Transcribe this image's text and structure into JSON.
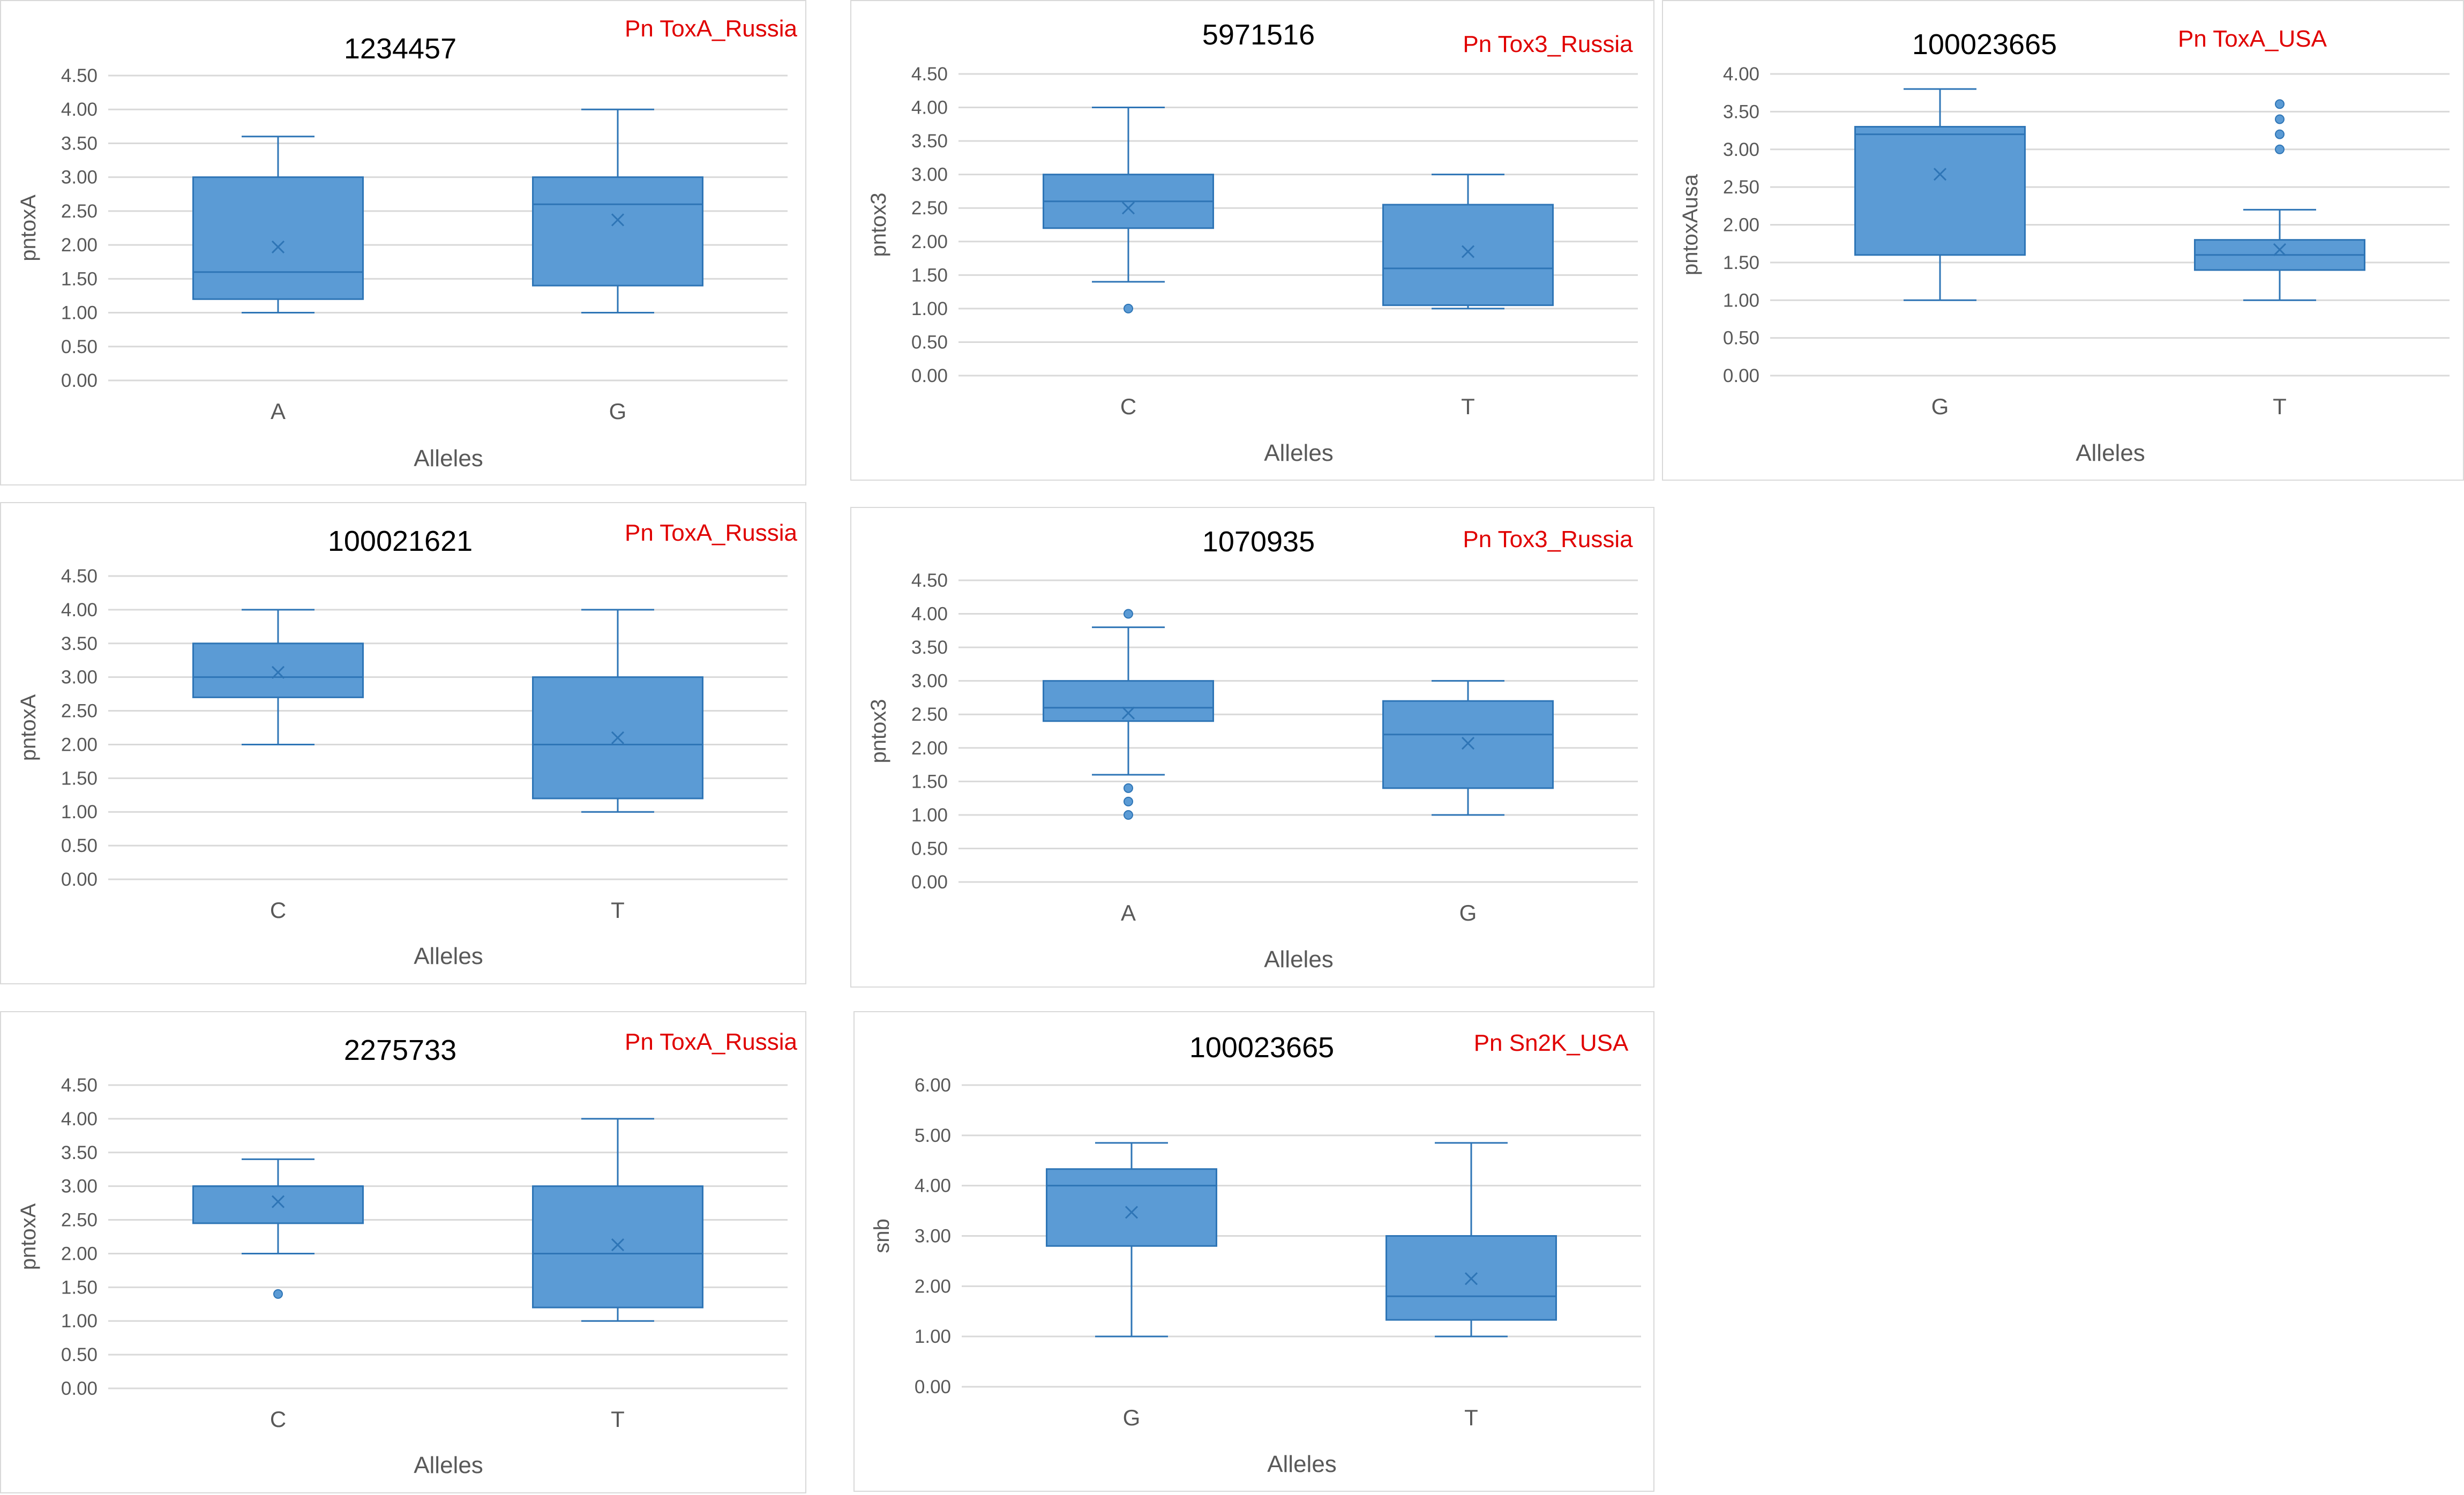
{
  "colors": {
    "box_fill": "#5b9bd5",
    "box_stroke": "#2e75b6",
    "annotation": "#e00000",
    "grid": "#d9d9d9",
    "text": "#595959"
  },
  "chart_data": [
    {
      "type": "box",
      "title": "1234457",
      "annotation": "Pn ToxA_Russia",
      "xlabel": "Alleles",
      "ylabel": "pntoxA",
      "ylim": [
        0,
        4.5
      ],
      "ytick_step": 0.5,
      "tick_decimals": 2,
      "categories": [
        "A",
        "G"
      ],
      "boxes": [
        {
          "min": 1.0,
          "q1": 1.2,
          "median": 1.6,
          "q3": 3.0,
          "max": 3.6,
          "mean": 1.97,
          "outliers": []
        },
        {
          "min": 1.0,
          "q1": 1.4,
          "median": 2.6,
          "q3": 3.0,
          "max": 4.0,
          "mean": 2.37,
          "outliers": []
        }
      ]
    },
    {
      "type": "box",
      "title": "5971516",
      "annotation": "Pn Tox3_Russia",
      "xlabel": "Alleles",
      "ylabel": "pntox3",
      "ylim": [
        0,
        4.5
      ],
      "ytick_step": 0.5,
      "tick_decimals": 2,
      "categories": [
        "C",
        "T"
      ],
      "boxes": [
        {
          "min": 1.4,
          "q1": 2.2,
          "median": 2.6,
          "q3": 3.0,
          "max": 4.0,
          "mean": 2.5,
          "outliers": [
            1.0
          ]
        },
        {
          "min": 1.0,
          "q1": 1.05,
          "median": 1.6,
          "q3": 2.55,
          "max": 3.0,
          "mean": 1.85,
          "outliers": []
        }
      ]
    },
    {
      "type": "box",
      "title": "100023665",
      "annotation": "Pn ToxA_USA",
      "xlabel": "Alleles",
      "ylabel": "pntoxAusa",
      "ylim": [
        0,
        4.0
      ],
      "ytick_step": 0.5,
      "tick_decimals": 2,
      "categories": [
        "G",
        "T"
      ],
      "boxes": [
        {
          "min": 1.0,
          "q1": 1.6,
          "median": 3.2,
          "q3": 3.3,
          "max": 3.8,
          "mean": 2.67,
          "outliers": []
        },
        {
          "min": 1.0,
          "q1": 1.4,
          "median": 1.6,
          "q3": 1.8,
          "max": 2.2,
          "mean": 1.67,
          "outliers": [
            3.0,
            3.2,
            3.4,
            3.6
          ]
        }
      ]
    },
    {
      "type": "box",
      "title": "100021621",
      "annotation": "Pn ToxA_Russia",
      "xlabel": "Alleles",
      "ylabel": "pntoxA",
      "ylim": [
        0,
        4.5
      ],
      "ytick_step": 0.5,
      "tick_decimals": 2,
      "categories": [
        "C",
        "T"
      ],
      "boxes": [
        {
          "min": 2.0,
          "q1": 2.7,
          "median": 3.0,
          "q3": 3.5,
          "max": 4.0,
          "mean": 3.07,
          "outliers": []
        },
        {
          "min": 1.0,
          "q1": 1.2,
          "median": 2.0,
          "q3": 3.0,
          "max": 4.0,
          "mean": 2.1,
          "outliers": []
        }
      ]
    },
    {
      "type": "box",
      "title": "1070935",
      "annotation": "Pn Tox3_Russia",
      "xlabel": "Alleles",
      "ylabel": "pntox3",
      "ylim": [
        0,
        4.5
      ],
      "ytick_step": 0.5,
      "tick_decimals": 2,
      "categories": [
        "A",
        "G"
      ],
      "boxes": [
        {
          "min": 1.6,
          "q1": 2.4,
          "median": 2.6,
          "q3": 3.0,
          "max": 3.8,
          "mean": 2.52,
          "outliers": [
            1.0,
            1.2,
            1.4,
            4.0
          ]
        },
        {
          "min": 1.0,
          "q1": 1.4,
          "median": 2.2,
          "q3": 2.7,
          "max": 3.0,
          "mean": 2.07,
          "outliers": []
        }
      ]
    },
    {
      "type": "box",
      "title": "2275733",
      "annotation": "Pn ToxA_Russia",
      "xlabel": "Alleles",
      "ylabel": "pntoxA",
      "ylim": [
        0,
        4.5
      ],
      "ytick_step": 0.5,
      "tick_decimals": 2,
      "categories": [
        "C",
        "T"
      ],
      "boxes": [
        {
          "min": 2.0,
          "q1": 2.45,
          "median": 3.0,
          "q3": 3.0,
          "max": 3.4,
          "mean": 2.77,
          "outliers": [
            1.4
          ]
        },
        {
          "min": 1.0,
          "q1": 1.2,
          "median": 2.0,
          "q3": 3.0,
          "max": 4.0,
          "mean": 2.13,
          "outliers": []
        }
      ]
    },
    {
      "type": "box",
      "title": "100023665",
      "annotation": "Pn Sn2K_USA",
      "xlabel": "Alleles",
      "ylabel": "snb",
      "ylim": [
        0,
        6.0
      ],
      "ytick_step": 1.0,
      "tick_decimals": 2,
      "categories": [
        "G",
        "T"
      ],
      "boxes": [
        {
          "min": 1.0,
          "q1": 2.8,
          "median": 4.0,
          "q3": 4.33,
          "max": 4.85,
          "mean": 3.47,
          "outliers": []
        },
        {
          "min": 1.0,
          "q1": 1.33,
          "median": 1.8,
          "q3": 3.0,
          "max": 4.85,
          "mean": 2.15,
          "outliers": []
        }
      ]
    }
  ]
}
